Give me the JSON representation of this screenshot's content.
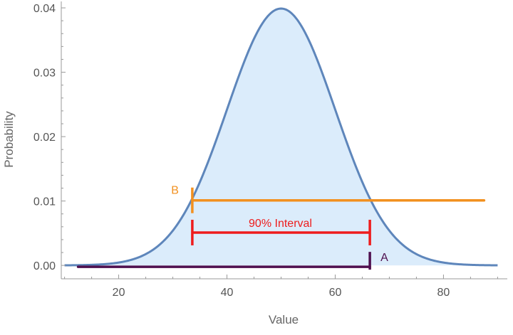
{
  "chart_data": {
    "type": "area",
    "title": "",
    "xlabel": "Value",
    "ylabel": "Probability",
    "xlim": [
      9,
      91
    ],
    "ylim": [
      -0.0012,
      0.041
    ],
    "x_ticks": [
      20,
      40,
      60,
      80
    ],
    "x_tick_labels": [
      "20",
      "40",
      "60",
      "80"
    ],
    "y_ticks": [
      0.0,
      0.01,
      0.02,
      0.03,
      0.04
    ],
    "y_tick_labels": [
      "0.00",
      "0.01",
      "0.02",
      "0.03",
      "0.04"
    ],
    "grid": false,
    "legend": "none",
    "distribution": {
      "family": "normal",
      "mean": 50,
      "sd": 10,
      "x_range": [
        10,
        90
      ],
      "peak_y": 0.0399,
      "fill_color": "#dbecfb",
      "line_color": "#5e86bb"
    },
    "annotations": {
      "A": {
        "label": "A",
        "x_start": 12.5,
        "x_end": 66.4,
        "y": 0.0,
        "color": "#4e0f4e"
      },
      "B": {
        "label": "B",
        "x_start": 33.6,
        "x_end": 87.5,
        "y": 0.0101,
        "color": "#f2901f"
      },
      "interval": {
        "label": "90% Interval",
        "x_start": 33.6,
        "x_end": 66.4,
        "y": 0.0051,
        "color": "#ee1c1c"
      }
    }
  }
}
